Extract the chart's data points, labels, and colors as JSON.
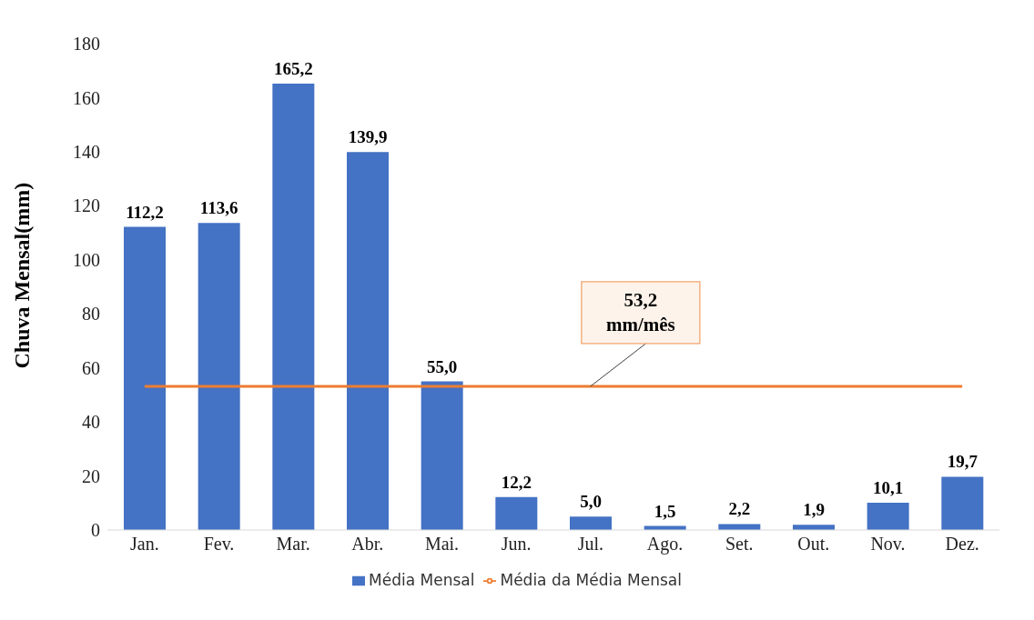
{
  "chart_data": {
    "type": "bar",
    "ylabel": "Chuva Mensal(mm)",
    "categories": [
      "Jan.",
      "Fev.",
      "Mar.",
      "Abr.",
      "Mai.",
      "Jun.",
      "Jul.",
      "Ago.",
      "Set.",
      "Out.",
      "Nov.",
      "Dez."
    ],
    "series": [
      {
        "name": "Média Mensal",
        "color": "#4472c4",
        "values": [
          112.2,
          113.6,
          165.2,
          139.9,
          55.0,
          12.2,
          5.0,
          1.5,
          2.2,
          1.9,
          10.1,
          19.7
        ],
        "value_labels": [
          "112,2",
          "113,6",
          "165,2",
          "139,9",
          "55,0",
          "12,2",
          "5,0",
          "1,5",
          "2,2",
          "1,9",
          "10,1",
          "19,7"
        ]
      },
      {
        "name": "Média da Média Mensal",
        "type": "line",
        "color": "#ed7d31",
        "values": [
          53.2,
          53.2,
          53.2,
          53.2,
          53.2,
          53.2,
          53.2,
          53.2,
          53.2,
          53.2,
          53.2,
          53.2
        ]
      }
    ],
    "annotations": [
      {
        "text": "53,2 mm/mês",
        "x": "Jul.",
        "y": 53.2
      }
    ],
    "ylim": [
      0,
      180
    ],
    "yticks": [
      0,
      20,
      40,
      60,
      80,
      100,
      120,
      140,
      160,
      180
    ],
    "grid": false,
    "legend": "bottom",
    "marker": "none",
    "line_style": "solid"
  }
}
